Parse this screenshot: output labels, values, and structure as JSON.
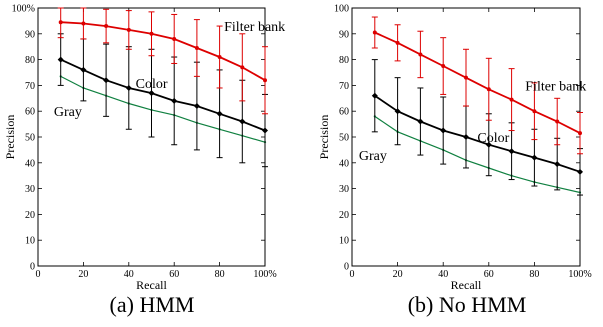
{
  "chart_data": [
    {
      "type": "line",
      "caption": "(a) HMM",
      "xlabel": "Recall",
      "ylabel": "Precision",
      "xlim": [
        0,
        100
      ],
      "ylim": [
        0,
        100
      ],
      "x_ticks": [
        0,
        20,
        40,
        60,
        80,
        100
      ],
      "x_tick_labels": [
        "0",
        "20",
        "40",
        "60",
        "80",
        "100%"
      ],
      "y_ticks": [
        0,
        10,
        20,
        30,
        40,
        50,
        60,
        70,
        80,
        90,
        100
      ],
      "y_tick_labels": [
        "0",
        "10",
        "20",
        "30",
        "40",
        "50",
        "60",
        "70",
        "80",
        "90",
        "100%"
      ],
      "x": [
        10,
        20,
        30,
        40,
        50,
        60,
        70,
        80,
        90,
        100
      ],
      "series": [
        {
          "name": "Filter bank",
          "color": "#dd0000",
          "marker": "circle",
          "values": [
            94.5,
            94,
            93,
            91.5,
            90,
            88,
            84.5,
            81,
            77,
            72
          ],
          "err": [
            6,
            6,
            6.5,
            7.5,
            8.5,
            9.5,
            11,
            12,
            13,
            13
          ],
          "label_at": [
            82,
            93
          ]
        },
        {
          "name": "Color",
          "color": "#000000",
          "marker": "diamond",
          "values": [
            80,
            76,
            72,
            69,
            67,
            64,
            62,
            59,
            56,
            52.5
          ],
          "err": [
            10,
            12,
            14,
            16,
            17,
            17,
            17,
            17,
            16,
            14
          ],
          "label_at": [
            43,
            71
          ]
        },
        {
          "name": "Gray",
          "color": "#108040",
          "marker": "none",
          "values": [
            73.5,
            69,
            66,
            63,
            60.5,
            58.5,
            55.5,
            53,
            50.5,
            48
          ],
          "err": [],
          "label_at": [
            7,
            60
          ]
        }
      ]
    },
    {
      "type": "line",
      "caption": "(b) No HMM",
      "xlabel": "Recall",
      "ylabel": "Precision",
      "xlim": [
        0,
        100
      ],
      "ylim": [
        0,
        100
      ],
      "x_ticks": [
        0,
        20,
        40,
        60,
        80,
        100
      ],
      "x_tick_labels": [
        "0",
        "20",
        "40",
        "60",
        "80",
        "100%"
      ],
      "y_ticks": [
        0,
        10,
        20,
        30,
        40,
        50,
        60,
        70,
        80,
        90,
        100
      ],
      "y_tick_labels": [
        "0",
        "10",
        "20",
        "30",
        "40",
        "50",
        "60",
        "70",
        "80",
        "90",
        "100"
      ],
      "x": [
        10,
        20,
        30,
        40,
        50,
        60,
        70,
        80,
        90,
        100
      ],
      "series": [
        {
          "name": "Filter bank",
          "color": "#dd0000",
          "marker": "circle",
          "values": [
            90.5,
            86.5,
            82,
            77.5,
            73,
            68.5,
            64.5,
            60,
            56,
            51.5
          ],
          "err": [
            6,
            7,
            9,
            11,
            11,
            12,
            12,
            11,
            9,
            8
          ],
          "label_at": [
            76,
            70
          ]
        },
        {
          "name": "Color",
          "color": "#000000",
          "marker": "diamond",
          "values": [
            66,
            60,
            56,
            52.5,
            50,
            47,
            44.5,
            42,
            39.5,
            36.5
          ],
          "err": [
            14,
            13,
            13,
            13,
            12,
            12,
            11,
            11,
            10,
            9
          ],
          "label_at": [
            55,
            50
          ]
        },
        {
          "name": "Gray",
          "color": "#108040",
          "marker": "none",
          "values": [
            58,
            52,
            48.5,
            45,
            41,
            38,
            35,
            32.5,
            30.5,
            28.5
          ],
          "err": [],
          "label_at": [
            3,
            43
          ]
        }
      ]
    }
  ]
}
